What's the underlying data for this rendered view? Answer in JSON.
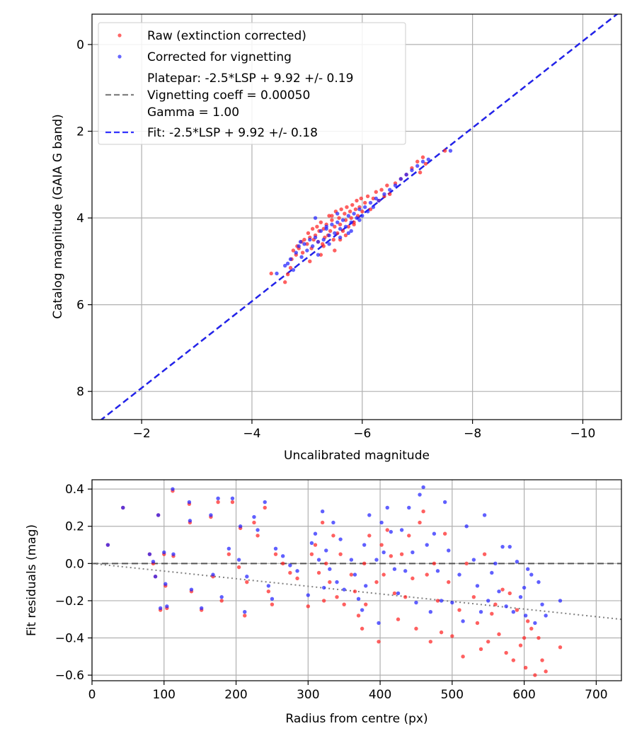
{
  "chart_data": [
    {
      "type": "scatter",
      "xlabel": "Uncalibrated magnitude",
      "ylabel": "Catalog magnitude (GAIA G band)",
      "xlim": [
        -1.1,
        -10.7
      ],
      "ylim": [
        8.65,
        -0.7
      ],
      "xticks": [
        -2,
        -4,
        -6,
        -8,
        -10
      ],
      "xtick_labels": [
        "−2",
        "−4",
        "−6",
        "−8",
        "−10"
      ],
      "yticks": [
        0,
        2,
        4,
        6,
        8
      ],
      "ytick_labels": [
        "0",
        "2",
        "4",
        "6",
        "8"
      ],
      "grid": true,
      "legend": {
        "position": "top-left",
        "entries": [
          {
            "label": "Raw (extinction corrected)",
            "kind": "marker",
            "color": "#ff3333"
          },
          {
            "label": "Corrected for vignetting",
            "kind": "marker",
            "color": "#3333ff"
          },
          {
            "label": "Platepar: -2.5*LSP + 9.92 +/- 0.19",
            "kind": "none"
          },
          {
            "label": "Vignetting coeff = 0.00050",
            "kind": "dashed",
            "color": "#808080"
          },
          {
            "label": "Gamma = 1.00",
            "kind": "none"
          },
          {
            "label": "Fit: -2.5*LSP + 9.92 +/- 0.18",
            "kind": "dashed",
            "color": "#3333ff"
          }
        ]
      },
      "series": [
        {
          "name": "Platepar",
          "kind": "line",
          "slope": 1.0,
          "intercept": 9.92,
          "color": "#808080"
        },
        {
          "name": "Fit",
          "kind": "line",
          "slope": 1.0,
          "intercept": 9.92,
          "color": "#2222ee"
        },
        {
          "name": "Raw (extinction corrected)",
          "kind": "points",
          "color": "#ff2222",
          "x": [
            -4.35,
            -4.6,
            -4.65,
            -4.7,
            -4.72,
            -4.75,
            -4.8,
            -4.82,
            -4.85,
            -4.9,
            -4.92,
            -4.95,
            -5.0,
            -5.02,
            -5.05,
            -5.08,
            -5.1,
            -5.12,
            -5.15,
            -5.18,
            -5.2,
            -5.22,
            -5.25,
            -5.28,
            -5.3,
            -5.32,
            -5.35,
            -5.38,
            -5.4,
            -5.42,
            -5.45,
            -5.48,
            -5.5,
            -5.52,
            -5.55,
            -5.58,
            -5.6,
            -5.62,
            -5.65,
            -5.68,
            -5.7,
            -5.72,
            -5.75,
            -5.78,
            -5.8,
            -5.82,
            -5.85,
            -5.88,
            -5.9,
            -5.92,
            -5.95,
            -5.98,
            -6.0,
            -6.05,
            -6.1,
            -6.15,
            -6.2,
            -6.25,
            -6.3,
            -6.35,
            -6.4,
            -6.45,
            -6.5,
            -6.6,
            -6.7,
            -6.8,
            -6.9,
            -7.0,
            -7.05,
            -7.1,
            -7.15,
            -7.5,
            -5.3,
            -5.5,
            -5.6,
            -5.7,
            -5.85,
            -5.45,
            -5.25,
            -5.05
          ],
          "y": [
            5.28,
            5.48,
            5.3,
            5.15,
            4.95,
            4.75,
            4.85,
            4.65,
            4.7,
            4.55,
            4.8,
            4.5,
            4.6,
            4.35,
            4.45,
            4.7,
            4.25,
            4.5,
            4.4,
            4.2,
            4.55,
            4.3,
            4.1,
            4.6,
            4.25,
            4.45,
            4.15,
            4.4,
            3.95,
            4.3,
            4.05,
            4.5,
            4.2,
            3.85,
            4.35,
            4.0,
            4.15,
            3.8,
            4.3,
            3.9,
            4.05,
            3.75,
            4.2,
            3.85,
            4.0,
            3.7,
            4.1,
            3.8,
            3.6,
            3.95,
            3.75,
            3.55,
            3.85,
            3.65,
            3.5,
            3.8,
            3.55,
            3.4,
            3.6,
            3.35,
            3.5,
            3.25,
            3.45,
            3.2,
            3.1,
            3.0,
            2.85,
            2.7,
            2.95,
            2.6,
            2.75,
            2.45,
            4.65,
            4.75,
            4.5,
            4.4,
            4.15,
            3.95,
            4.85,
            5.0
          ]
        },
        {
          "name": "Corrected for vignetting",
          "kind": "points",
          "color": "#2222ff",
          "x": [
            -4.45,
            -4.6,
            -4.7,
            -4.75,
            -4.8,
            -4.85,
            -4.9,
            -4.95,
            -5.0,
            -5.05,
            -5.1,
            -5.15,
            -5.2,
            -5.25,
            -5.3,
            -5.35,
            -5.4,
            -5.45,
            -5.5,
            -5.55,
            -5.6,
            -5.65,
            -5.7,
            -5.75,
            -5.8,
            -5.85,
            -5.9,
            -5.95,
            -6.0,
            -6.05,
            -6.1,
            -6.15,
            -6.2,
            -6.25,
            -6.3,
            -6.4,
            -6.5,
            -6.6,
            -6.7,
            -6.8,
            -6.9,
            -7.0,
            -7.1,
            -7.2,
            -7.6,
            -5.2,
            -5.4,
            -5.6,
            -5.8,
            -5.15,
            -5.35,
            -5.55,
            -5.75,
            -5.95,
            -4.65,
            -4.88
          ],
          "y": [
            5.28,
            5.1,
            4.95,
            5.2,
            4.8,
            4.65,
            4.9,
            4.6,
            4.75,
            4.5,
            4.65,
            4.45,
            4.55,
            4.3,
            4.5,
            4.25,
            4.4,
            4.15,
            4.35,
            4.1,
            4.25,
            4.05,
            4.2,
            3.95,
            4.1,
            3.9,
            4.0,
            3.8,
            3.95,
            3.75,
            3.85,
            3.65,
            3.75,
            3.55,
            3.6,
            3.45,
            3.35,
            3.25,
            3.1,
            3.0,
            2.9,
            2.8,
            2.7,
            2.65,
            2.45,
            4.85,
            4.6,
            4.45,
            4.3,
            4.0,
            4.2,
            3.9,
            4.35,
            4.05,
            5.05,
            4.55
          ]
        }
      ]
    },
    {
      "type": "scatter",
      "xlabel": "Radius from centre (px)",
      "ylabel": "Fit residuals (mag)",
      "xlim": [
        0,
        735
      ],
      "ylim": [
        -0.63,
        0.45
      ],
      "xticks": [
        0,
        100,
        200,
        300,
        400,
        500,
        600,
        700
      ],
      "xtick_labels": [
        "0",
        "100",
        "200",
        "300",
        "400",
        "500",
        "600",
        "700"
      ],
      "yticks": [
        0.4,
        0.2,
        0.0,
        -0.2,
        -0.4,
        -0.6
      ],
      "ytick_labels": [
        "0.4",
        "0.2",
        "0.0",
        "−0.2",
        "−0.4",
        "−0.6"
      ],
      "grid": true,
      "series": [
        {
          "name": "Zero line",
          "kind": "hline",
          "y": 0.0,
          "color": "#555555"
        },
        {
          "name": "Vignetting model",
          "kind": "line",
          "x": [
            0,
            735
          ],
          "y": [
            0.0,
            -0.3
          ],
          "color": "#808080"
        },
        {
          "name": "Raw (extinction corrected)",
          "kind": "points",
          "color": "#ff2222",
          "x": [
            22,
            43,
            80,
            85,
            88,
            92,
            95,
            100,
            102,
            104,
            112,
            113,
            135,
            136,
            138,
            152,
            165,
            168,
            175,
            180,
            190,
            195,
            204,
            206,
            212,
            215,
            225,
            230,
            240,
            245,
            250,
            255,
            265,
            275,
            285,
            300,
            305,
            310,
            315,
            320,
            322,
            325,
            330,
            335,
            340,
            345,
            350,
            360,
            365,
            370,
            375,
            378,
            380,
            385,
            395,
            398,
            402,
            405,
            410,
            415,
            420,
            425,
            430,
            435,
            440,
            445,
            450,
            455,
            460,
            465,
            470,
            475,
            480,
            485,
            490,
            495,
            500,
            510,
            515,
            520,
            530,
            535,
            540,
            545,
            550,
            555,
            560,
            565,
            570,
            575,
            580,
            585,
            590,
            595,
            600,
            602,
            605,
            610,
            615,
            620,
            625,
            630,
            650
          ],
          "y": [
            0.1,
            0.3,
            0.05,
            0.0,
            -0.07,
            0.26,
            -0.25,
            0.05,
            -0.12,
            -0.24,
            0.39,
            0.04,
            0.32,
            0.22,
            -0.15,
            -0.25,
            0.25,
            -0.07,
            0.33,
            -0.2,
            0.05,
            0.33,
            -0.02,
            0.19,
            -0.28,
            -0.1,
            0.22,
            0.15,
            0.3,
            -0.15,
            -0.22,
            0.05,
            0.0,
            -0.05,
            -0.08,
            -0.23,
            0.05,
            0.1,
            -0.05,
            0.22,
            -0.2,
            0.0,
            -0.1,
            0.15,
            -0.18,
            0.05,
            -0.22,
            -0.06,
            -0.15,
            -0.28,
            -0.35,
            0.0,
            -0.22,
            0.15,
            -0.1,
            -0.42,
            0.1,
            -0.06,
            0.18,
            0.04,
            -0.16,
            -0.3,
            0.05,
            -0.18,
            0.15,
            -0.08,
            -0.35,
            0.22,
            0.28,
            -0.06,
            -0.42,
            0.0,
            -0.2,
            -0.37,
            0.16,
            -0.1,
            -0.39,
            -0.25,
            -0.5,
            0.0,
            -0.18,
            -0.32,
            -0.46,
            0.05,
            -0.42,
            -0.27,
            -0.22,
            -0.38,
            -0.14,
            -0.48,
            -0.16,
            -0.52,
            -0.25,
            -0.44,
            -0.4,
            -0.56,
            -0.31,
            -0.35,
            -0.6,
            -0.4,
            -0.52,
            -0.58,
            -0.45
          ]
        },
        {
          "name": "Corrected for vignetting",
          "kind": "points",
          "color": "#2222ff",
          "x": [
            22,
            43,
            80,
            85,
            88,
            92,
            95,
            100,
            102,
            104,
            112,
            113,
            135,
            136,
            138,
            152,
            165,
            168,
            175,
            180,
            190,
            195,
            204,
            206,
            212,
            215,
            225,
            230,
            240,
            245,
            250,
            255,
            265,
            275,
            285,
            300,
            305,
            310,
            315,
            320,
            322,
            325,
            330,
            335,
            340,
            345,
            350,
            360,
            365,
            370,
            375,
            378,
            380,
            385,
            395,
            398,
            402,
            405,
            410,
            415,
            420,
            425,
            430,
            435,
            440,
            445,
            450,
            455,
            460,
            465,
            470,
            475,
            480,
            485,
            490,
            495,
            500,
            510,
            515,
            520,
            530,
            535,
            540,
            545,
            550,
            555,
            560,
            565,
            570,
            575,
            580,
            585,
            590,
            595,
            600,
            602,
            605,
            610,
            615,
            620,
            625,
            630,
            650
          ],
          "y": [
            0.1,
            0.3,
            0.05,
            0.01,
            -0.07,
            0.26,
            -0.24,
            0.06,
            -0.11,
            -0.23,
            0.4,
            0.05,
            0.33,
            0.23,
            -0.14,
            -0.24,
            0.26,
            -0.06,
            0.35,
            -0.18,
            0.08,
            0.35,
            0.02,
            0.2,
            -0.26,
            -0.07,
            0.25,
            0.18,
            0.33,
            -0.12,
            -0.19,
            0.08,
            0.04,
            -0.01,
            -0.04,
            -0.17,
            0.11,
            0.16,
            0.02,
            0.28,
            -0.13,
            0.07,
            -0.03,
            0.22,
            -0.1,
            0.13,
            -0.14,
            0.02,
            -0.06,
            -0.19,
            -0.25,
            0.1,
            -0.12,
            0.26,
            0.02,
            -0.32,
            0.22,
            0.06,
            0.3,
            0.17,
            -0.03,
            -0.16,
            0.18,
            -0.04,
            0.3,
            0.06,
            -0.21,
            0.37,
            0.41,
            0.1,
            -0.26,
            0.16,
            -0.04,
            -0.2,
            0.33,
            0.07,
            -0.21,
            -0.06,
            -0.31,
            0.2,
            0.02,
            -0.12,
            -0.26,
            0.26,
            -0.2,
            -0.05,
            0.0,
            -0.15,
            0.09,
            -0.23,
            0.09,
            -0.26,
            0.01,
            -0.18,
            -0.13,
            -0.28,
            -0.03,
            -0.06,
            -0.32,
            -0.1,
            -0.22,
            -0.28,
            -0.2
          ]
        }
      ]
    }
  ]
}
